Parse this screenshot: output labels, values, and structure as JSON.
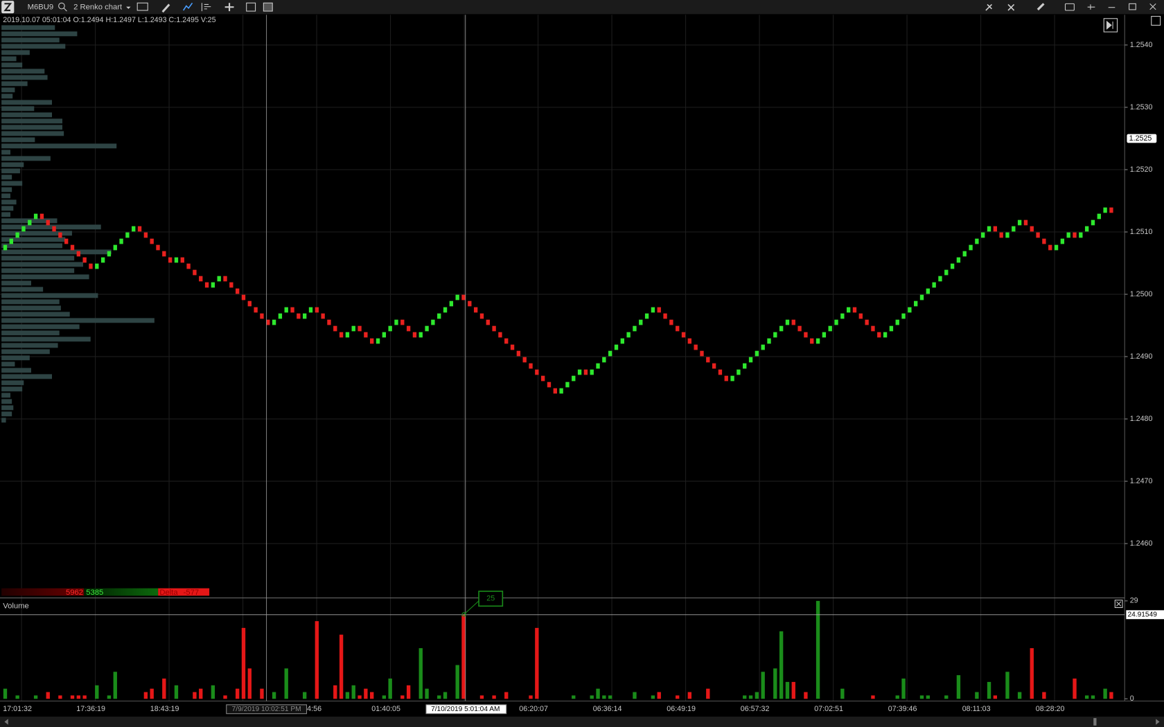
{
  "toolbar": {
    "symbol": "M6BU9",
    "chart_name": "2 Renko chart"
  },
  "info": "2019.10.07 05:01:04 O:1.2494 H:1.2497 L:1.2493 C:1.2495 V:25",
  "delta": {
    "sell": 5962,
    "buy": 5385,
    "label": "Delta",
    "value": -577
  },
  "chart_data": [
    {
      "type": "renko",
      "colors": {
        "up": "#2ee82e",
        "down": "#e8211e"
      },
      "values": [
        1.2507,
        1.2508,
        1.2509,
        1.251,
        1.2511,
        1.2512,
        1.2513,
        1.2512,
        1.2511,
        1.251,
        1.2509,
        1.2508,
        1.2507,
        1.2506,
        1.2505,
        1.2504,
        1.2505,
        1.2506,
        1.2507,
        1.2508,
        1.2509,
        1.251,
        1.2511,
        1.251,
        1.2509,
        1.2508,
        1.2507,
        1.2506,
        1.2505,
        1.2506,
        1.2505,
        1.2504,
        1.2503,
        1.2502,
        1.2501,
        1.2502,
        1.2503,
        1.2502,
        1.2501,
        1.25,
        1.2499,
        1.2498,
        1.2497,
        1.2496,
        1.2495,
        1.2496,
        1.2497,
        1.2498,
        1.2497,
        1.2496,
        1.2497,
        1.2498,
        1.2497,
        1.2496,
        1.2495,
        1.2494,
        1.2493,
        1.2494,
        1.2495,
        1.2494,
        1.2493,
        1.2492,
        1.2493,
        1.2494,
        1.2495,
        1.2496,
        1.2495,
        1.2494,
        1.2493,
        1.2494,
        1.2495,
        1.2496,
        1.2497,
        1.2498,
        1.2499,
        1.25,
        1.2499,
        1.2498,
        1.2497,
        1.2496,
        1.2495,
        1.2494,
        1.2493,
        1.2492,
        1.2491,
        1.249,
        1.2489,
        1.2488,
        1.2487,
        1.2486,
        1.2485,
        1.2484,
        1.2485,
        1.2486,
        1.2487,
        1.2488,
        1.2487,
        1.2488,
        1.2489,
        1.249,
        1.2491,
        1.2492,
        1.2493,
        1.2494,
        1.2495,
        1.2496,
        1.2497,
        1.2498,
        1.2497,
        1.2496,
        1.2495,
        1.2494,
        1.2493,
        1.2492,
        1.2491,
        1.249,
        1.2489,
        1.2488,
        1.2487,
        1.2486,
        1.2487,
        1.2488,
        1.2489,
        1.249,
        1.2491,
        1.2492,
        1.2493,
        1.2494,
        1.2495,
        1.2496,
        1.2495,
        1.2494,
        1.2493,
        1.2492,
        1.2493,
        1.2494,
        1.2495,
        1.2496,
        1.2497,
        1.2498,
        1.2497,
        1.2496,
        1.2495,
        1.2494,
        1.2493,
        1.2494,
        1.2495,
        1.2496,
        1.2497,
        1.2498,
        1.2499,
        1.25,
        1.2501,
        1.2502,
        1.2503,
        1.2504,
        1.2505,
        1.2506,
        1.2507,
        1.2508,
        1.2509,
        1.251,
        1.2511,
        1.251,
        1.2509,
        1.251,
        1.2511,
        1.2512,
        1.2511,
        1.251,
        1.2509,
        1.2508,
        1.2507,
        1.2508,
        1.2509,
        1.251,
        1.2509,
        1.251,
        1.2511,
        1.2512,
        1.2513,
        1.2514,
        1.2513
      ],
      "ylim": [
        1.24514,
        1.25446
      ],
      "yticks": [
        {
          "value": 1.254,
          "label": "1.2540"
        },
        {
          "value": 1.253,
          "label": "1.2530"
        },
        {
          "value": 1.252,
          "label": "1.2520"
        },
        {
          "value": 1.251,
          "label": "1.2510"
        },
        {
          "value": 1.25,
          "label": "1.2500"
        },
        {
          "value": 1.249,
          "label": "1.2490"
        },
        {
          "value": 1.248,
          "label": "1.2480"
        },
        {
          "value": 1.247,
          "label": "1.2470"
        },
        {
          "value": 1.246,
          "label": "1.2460"
        }
      ],
      "last_price": 1.2525,
      "x_labels": [
        "17:01:32",
        "17:36:19",
        "18:43:19",
        null,
        "14:56",
        "01:40:05",
        null,
        "06:20:07",
        "06:36:14",
        "06:49:19",
        "06:57:32",
        "07:02:51",
        "07:39:46",
        "08:11:03",
        "08:28:20"
      ],
      "crosshair_labels": [
        "7/9/2019 10:02:51 PM",
        "7/10/2019 5:01:04 AM"
      ],
      "grid": true
    },
    {
      "type": "bar",
      "title": "Volume",
      "colors": {
        "up": "#1a8c1a",
        "down": "#e51717"
      },
      "values": [
        3,
        0,
        1,
        0,
        0,
        1,
        0,
        2,
        0,
        1,
        0,
        1,
        1,
        1,
        0,
        4,
        0,
        1,
        8,
        0,
        0,
        0,
        0,
        2,
        3,
        0,
        6,
        0,
        4,
        0,
        0,
        2,
        3,
        0,
        4,
        0,
        1,
        0,
        3,
        21,
        9,
        0,
        3,
        0,
        2,
        0,
        9,
        0,
        0,
        2,
        0,
        23,
        0,
        0,
        4,
        19,
        2,
        4,
        1,
        3,
        2,
        0,
        1,
        6,
        0,
        1,
        4,
        0,
        15,
        3,
        0,
        1,
        2,
        0,
        10,
        25,
        0,
        0,
        1,
        0,
        1,
        0,
        2,
        0,
        0,
        0,
        1,
        21,
        0,
        0,
        0,
        0,
        0,
        1,
        0,
        0,
        1,
        3,
        1,
        1,
        0,
        0,
        0,
        2,
        0,
        0,
        1,
        2,
        0,
        0,
        1,
        0,
        2,
        0,
        0,
        3,
        0,
        0,
        0,
        0,
        0,
        1,
        1,
        2,
        8,
        0,
        9,
        20,
        5,
        5,
        0,
        2,
        0,
        29,
        0,
        0,
        0,
        3,
        0,
        0,
        0,
        0,
        1,
        0,
        0,
        0,
        1,
        6,
        0,
        0,
        1,
        1,
        0,
        0,
        1,
        0,
        7,
        0,
        0,
        2,
        0,
        5,
        1,
        0,
        8,
        0,
        2,
        0,
        15,
        0,
        2,
        0,
        0,
        0,
        0,
        6,
        0,
        1,
        1,
        0,
        3,
        2
      ],
      "ylim": [
        0,
        29
      ],
      "yticks": [
        0,
        29
      ],
      "marker": 24.91549,
      "tooltip": 25
    },
    {
      "type": "profile",
      "color": "#2e4444",
      "values": [
        72,
        102,
        78,
        86,
        38,
        20,
        28,
        58,
        62,
        35,
        18,
        15,
        68,
        44,
        68,
        82,
        82,
        84,
        45,
        155,
        12,
        66,
        30,
        25,
        14,
        28,
        14,
        12,
        20,
        16,
        12,
        75,
        134,
        95,
        86,
        82,
        148,
        98,
        110,
        98,
        118,
        40,
        56,
        130,
        78,
        80,
        92,
        206,
        105,
        78,
        120,
        76,
        65,
        38,
        18,
        40,
        68,
        30,
        28,
        12,
        14,
        16,
        14,
        6
      ]
    }
  ]
}
